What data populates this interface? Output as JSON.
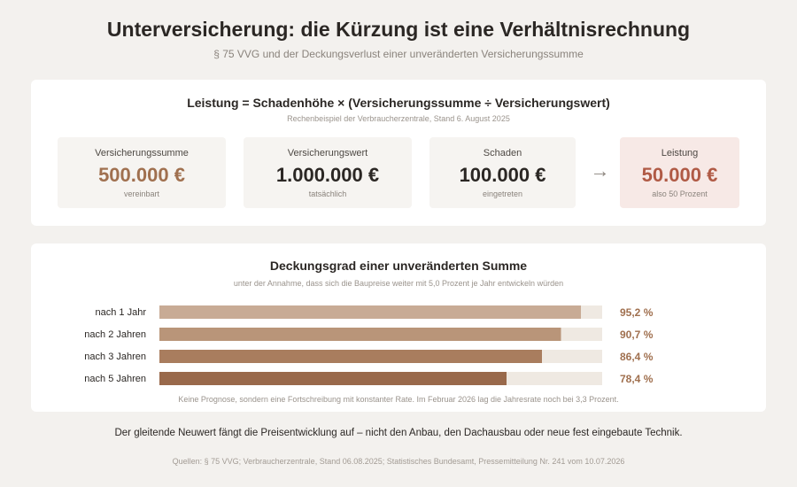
{
  "header": {
    "title": "Unterversicherung: die Kürzung ist eine Verhältnisrechnung",
    "subtitle": "§ 75 VVG und der Deckungsverlust einer unveränderten Versicherungssumme"
  },
  "formula_card": {
    "formula": "Leistung = Schadenhöhe × (Versicherungssumme ÷ Versicherungswert)",
    "note": "Rechenbeispiel der Verbraucherzentrale, Stand 6. August 2025",
    "boxes": [
      {
        "label": "Versicherungssumme",
        "value": "500.000 €",
        "note": "vereinbart"
      },
      {
        "label": "Versicherungswert",
        "value": "1.000.000 €",
        "note": "tatsächlich"
      },
      {
        "label": "Schaden",
        "value": "100.000 €",
        "note": "eingetreten"
      }
    ],
    "arrow": "→",
    "result": {
      "label": "Leistung",
      "value": "50.000 €",
      "note": "also 50 Prozent"
    }
  },
  "chart_card": {
    "title": "Deckungsgrad einer unveränderten Summe",
    "subtitle": "unter der Annahme, dass sich die Baupreise weiter mit 5,0 Prozent je Jahr entwickeln würden",
    "footnote": "Keine Prognose, sondern eine Fortschreibung mit konstanter Rate. Im Februar 2026 lag die Jahresrate noch bei 3,3 Prozent."
  },
  "chart_data": {
    "type": "bar",
    "orientation": "horizontal",
    "categories": [
      "nach 1 Jahr",
      "nach 2 Jahren",
      "nach 3 Jahren",
      "nach 5 Jahren"
    ],
    "values": [
      95.2,
      90.7,
      86.4,
      78.4
    ],
    "value_labels": [
      "95,2 %",
      "90,7 %",
      "86,4 %",
      "78,4 %"
    ],
    "xlim": [
      0,
      100
    ],
    "colors": [
      "#c8ab95",
      "#b99579",
      "#a97d5e",
      "#99694b"
    ],
    "track_color": "#efe9e2",
    "label_color": "#a0704f"
  },
  "footer": {
    "conclusion": "Der gleitende Neuwert fängt die Preisentwicklung auf – nicht den Anbau, den Dachausbau oder neue fest eingebaute Technik.",
    "sources": "Quellen: § 75 VVG; Verbraucherzentrale, Stand 06.08.2025; Statistisches Bundesamt, Pressemitteilung Nr. 241 vom 10.07.2026"
  }
}
